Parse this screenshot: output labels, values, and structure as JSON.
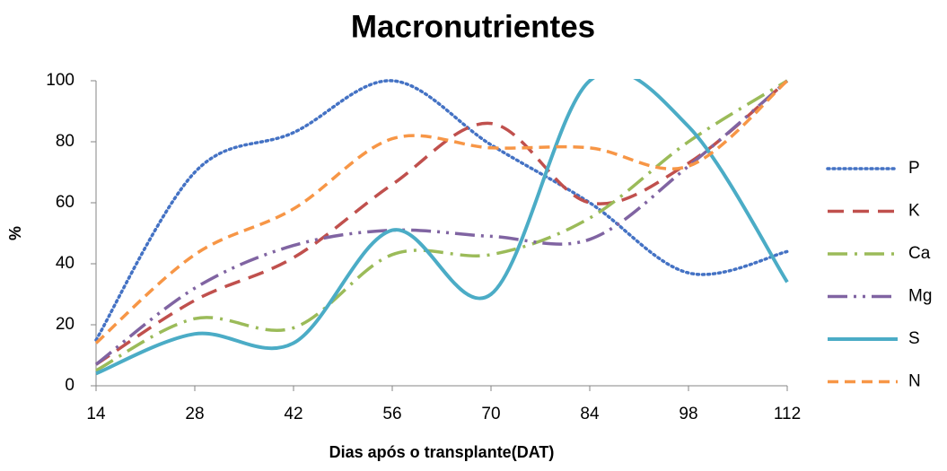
{
  "chart_data": {
    "type": "line",
    "title": "Macronutrientes",
    "xlabel": "Dias após o transplante(DAT)",
    "ylabel": "%",
    "x": [
      14,
      28,
      42,
      56,
      70,
      84,
      98,
      112
    ],
    "series": [
      {
        "name": "P",
        "color": "#4472c4",
        "style": "dotted",
        "values": [
          15,
          70,
          83,
          100,
          79,
          60,
          37,
          44
        ]
      },
      {
        "name": "K",
        "color": "#c0504d",
        "style": "dashed",
        "values": [
          7,
          28,
          42,
          66,
          86,
          60,
          73,
          100
        ]
      },
      {
        "name": "Ca",
        "color": "#9bbb59",
        "style": "long-dash-dot",
        "values": [
          5,
          22,
          19,
          43,
          43,
          55,
          80,
          100
        ]
      },
      {
        "name": "Mg",
        "color": "#8064a2",
        "style": "long-dash-dot-dot",
        "values": [
          7,
          32,
          46,
          51,
          49,
          48,
          72,
          100
        ]
      },
      {
        "name": "S",
        "color": "#4bacc6",
        "style": "solid",
        "values": [
          4,
          17,
          14,
          51,
          30,
          100,
          85,
          34
        ]
      },
      {
        "name": "N",
        "color": "#f79646",
        "style": "short-dash",
        "values": [
          14,
          43,
          58,
          81,
          78,
          78,
          72,
          100
        ]
      }
    ],
    "xlim": [
      14,
      112
    ],
    "xticks": [
      14,
      28,
      42,
      56,
      70,
      84,
      98,
      112
    ],
    "ylim": [
      0,
      100
    ],
    "yticks": [
      0,
      20,
      40,
      60,
      80,
      100
    ],
    "grid": false,
    "smooth": true,
    "legend": "right"
  }
}
